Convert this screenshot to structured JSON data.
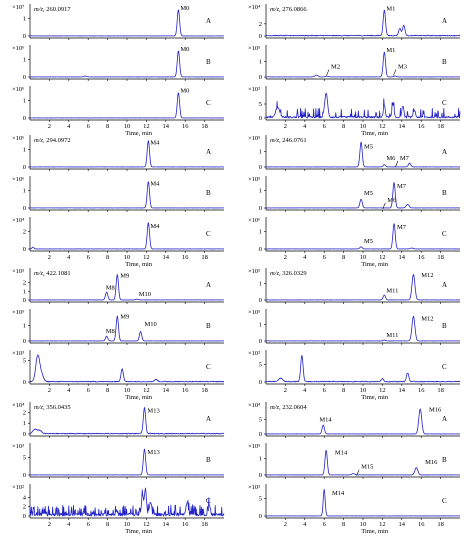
{
  "chart_data": {
    "type": "line",
    "x_axis": {
      "label": "Time, min",
      "range": [
        0,
        20
      ],
      "ticks": [
        "2",
        "4",
        "6",
        "8",
        "10",
        "12",
        "14",
        "16",
        "18"
      ]
    },
    "colors": {
      "trace": "#2323c8",
      "axis": "#000000"
    },
    "groups": [
      {
        "mz": "m/z, 260.0917",
        "panels": [
          {
            "row": "A",
            "scale": "×10⁷",
            "yticks": [
              "0",
              "1"
            ],
            "ymax": 1.6,
            "noise": "flat",
            "peaks": [
              {
                "t": 15.3,
                "h": 1.5,
                "w": 0.12
              }
            ],
            "labels": [
              {
                "text": "M0",
                "t": 15.3,
                "h": 1.5
              }
            ]
          },
          {
            "row": "B",
            "scale": "×10⁶",
            "yticks": [
              "0",
              "1"
            ],
            "ymax": 1.6,
            "noise": "flat",
            "peaks": [
              {
                "t": 15.3,
                "h": 1.5,
                "w": 0.12
              },
              {
                "t": 5.7,
                "h": 0.05,
                "w": 0.12
              }
            ],
            "labels": [
              {
                "text": "M0",
                "t": 15.3,
                "h": 1.5
              }
            ]
          },
          {
            "row": "C",
            "scale": "×10⁶",
            "yticks": [
              "0",
              "1"
            ],
            "ymax": 1.6,
            "noise": "flat",
            "peaks": [
              {
                "t": 15.3,
                "h": 1.45,
                "w": 0.12
              }
            ],
            "labels": [
              {
                "text": "M0",
                "t": 15.3,
                "h": 1.45
              }
            ]
          }
        ]
      },
      {
        "mz": "m/z, 276.0866",
        "panels": [
          {
            "row": "A",
            "scale": "×10⁴",
            "yticks": [
              "0",
              "2"
            ],
            "ymax": 4.6,
            "noise": "low",
            "peaks": [
              {
                "t": 12.2,
                "h": 4.2,
                "w": 0.12
              },
              {
                "t": 13.8,
                "h": 1.2,
                "w": 0.12
              },
              {
                "t": 14.2,
                "h": 1.7,
                "w": 0.12
              }
            ],
            "labels": [
              {
                "text": "M1",
                "t": 12.2,
                "h": 4.2
              }
            ]
          },
          {
            "row": "B",
            "scale": "×10⁵",
            "yticks": [
              "0",
              "1"
            ],
            "ymax": 1.8,
            "noise": "flat",
            "peaks": [
              {
                "t": 12.2,
                "h": 1.6,
                "w": 0.12
              },
              {
                "t": 5.2,
                "h": 0.12,
                "w": 0.15
              },
              {
                "t": 6.3,
                "h": 0.05,
                "w": 0.12
              },
              {
                "t": 13.3,
                "h": 0.06,
                "w": 0.12
              }
            ],
            "labels": [
              {
                "text": "M1",
                "t": 12.2,
                "h": 1.6
              },
              {
                "text": "M2",
                "t": 6.5,
                "h": 0.55,
                "arrow": true
              },
              {
                "text": "M3",
                "t": 13.4,
                "h": 0.55,
                "arrow": true
              }
            ]
          },
          {
            "row": "C",
            "scale": "×10³",
            "yticks": [
              "0",
              "5"
            ],
            "ymax": 10,
            "noise": "busy",
            "peaks": [
              {
                "t": 6.2,
                "h": 8.5,
                "w": 0.15
              },
              {
                "t": 12.2,
                "h": 4.2,
                "w": 0.1
              },
              {
                "t": 13.1,
                "h": 4.5,
                "w": 0.1
              },
              {
                "t": 14.1,
                "h": 4.0,
                "w": 0.1
              },
              {
                "t": 15.3,
                "h": 2.6,
                "w": 0.1
              },
              {
                "t": 1.2,
                "h": 3.5,
                "w": 0.2
              }
            ],
            "labels": [
              {
                "text": "C",
                "t": 19.5,
                "h": 6.3,
                "plain": true
              }
            ]
          }
        ]
      },
      {
        "mz": "m/z, 294.0972",
        "panels": [
          {
            "row": "A",
            "scale": "×10⁶",
            "yticks": [
              "0",
              "1"
            ],
            "ymax": 1.6,
            "noise": "flat",
            "peaks": [
              {
                "t": 12.2,
                "h": 1.5,
                "w": 0.12
              }
            ],
            "labels": [
              {
                "text": "M4",
                "t": 12.2,
                "h": 1.3
              }
            ]
          },
          {
            "row": "B",
            "scale": "×10⁶",
            "yticks": [
              "0",
              "1"
            ],
            "ymax": 1.6,
            "noise": "flat",
            "peaks": [
              {
                "t": 12.2,
                "h": 1.5,
                "w": 0.12
              }
            ],
            "labels": [
              {
                "text": "M4",
                "t": 12.2,
                "h": 1.3
              }
            ]
          },
          {
            "row": "C",
            "scale": "×10⁴",
            "yticks": [
              "0",
              "2"
            ],
            "ymax": 3.2,
            "noise": "flat",
            "peaks": [
              {
                "t": 12.2,
                "h": 3.0,
                "w": 0.12
              },
              {
                "t": 0.3,
                "h": 0.2,
                "w": 0.1
              }
            ],
            "labels": [
              {
                "text": "M4",
                "t": 12.2,
                "h": 2.4
              }
            ]
          }
        ]
      },
      {
        "mz": "m/z, 246.0761",
        "panels": [
          {
            "row": "A",
            "scale": "×10⁵",
            "yticks": [
              "0",
              "1"
            ],
            "ymax": 1.8,
            "noise": "flat",
            "peaks": [
              {
                "t": 9.8,
                "h": 1.6,
                "w": 0.12
              },
              {
                "t": 12.2,
                "h": 0.15,
                "w": 0.12
              },
              {
                "t": 14.8,
                "h": 0.25,
                "w": 0.12
              }
            ],
            "labels": [
              {
                "text": "M5",
                "t": 9.9,
                "h": 1.2
              },
              {
                "text": "M6",
                "t": 12.2,
                "h": 0.45
              },
              {
                "text": "M7",
                "t": 13.6,
                "h": 0.45,
                "arrow": true
              }
            ]
          },
          {
            "row": "B",
            "scale": "×10⁵",
            "yticks": [
              "0",
              "1"
            ],
            "ymax": 1.6,
            "noise": "flat",
            "peaks": [
              {
                "t": 9.8,
                "h": 0.5,
                "w": 0.12
              },
              {
                "t": 13.2,
                "h": 1.45,
                "w": 0.12
              },
              {
                "t": 14.6,
                "h": 0.2,
                "w": 0.15
              }
            ],
            "labels": [
              {
                "text": "M5",
                "t": 9.9,
                "h": 0.75
              },
              {
                "text": "M6",
                "t": 12.3,
                "h": 0.35,
                "arrow": true
              },
              {
                "text": "M7",
                "t": 13.3,
                "h": 1.15
              }
            ]
          },
          {
            "row": "C",
            "scale": "×10⁶",
            "yticks": [
              "0",
              "1"
            ],
            "ymax": 1.6,
            "noise": "flat",
            "peaks": [
              {
                "t": 9.8,
                "h": 0.12,
                "w": 0.12
              },
              {
                "t": 13.2,
                "h": 1.45,
                "w": 0.12
              },
              {
                "t": 15.0,
                "h": 0.05,
                "w": 0.15
              }
            ],
            "labels": [
              {
                "text": "M5",
                "t": 9.9,
                "h": 0.35
              },
              {
                "text": "M7",
                "t": 13.3,
                "h": 1.15
              }
            ]
          }
        ]
      },
      {
        "mz": "m/z, 422.1081",
        "panels": [
          {
            "row": "A",
            "scale": "×10⁵",
            "yticks": [
              "0",
              "1",
              "2"
            ],
            "ymax": 3.2,
            "noise": "flat",
            "peaks": [
              {
                "t": 7.9,
                "h": 0.9,
                "w": 0.12
              },
              {
                "t": 9.0,
                "h": 2.9,
                "w": 0.12
              },
              {
                "t": 11.0,
                "h": 0.08,
                "w": 0.12
              }
            ],
            "labels": [
              {
                "text": "M8",
                "t": 7.6,
                "h": 1.2
              },
              {
                "text": "M9",
                "t": 9.1,
                "h": 2.6
              },
              {
                "text": "M10",
                "t": 11.0,
                "h": 0.45
              }
            ]
          },
          {
            "row": "B",
            "scale": "×10⁵",
            "yticks": [
              "0",
              "1"
            ],
            "ymax": 1.8,
            "noise": "flat",
            "peaks": [
              {
                "t": 7.9,
                "h": 0.3,
                "w": 0.12
              },
              {
                "t": 9.0,
                "h": 1.6,
                "w": 0.12
              },
              {
                "t": 11.4,
                "h": 0.6,
                "w": 0.12
              }
            ],
            "labels": [
              {
                "text": "M8",
                "t": 7.6,
                "h": 0.5
              },
              {
                "text": "M9",
                "t": 9.1,
                "h": 1.45
              },
              {
                "text": "M10",
                "t": 11.6,
                "h": 0.95
              }
            ]
          },
          {
            "row": "C",
            "scale": "×10³",
            "yticks": [
              "0",
              "5"
            ],
            "ymax": 6.5,
            "noise": "low",
            "peaks": [
              {
                "t": 0.8,
                "h": 6.0,
                "w": 0.2
              },
              {
                "t": 1.2,
                "h": 1.5,
                "w": 0.2
              },
              {
                "t": 9.5,
                "h": 3.0,
                "w": 0.12
              },
              {
                "t": 13.0,
                "h": 0.5,
                "w": 0.15
              }
            ],
            "labels": []
          }
        ]
      },
      {
        "mz": "m/z, 326.0329",
        "panels": [
          {
            "row": "A",
            "scale": "×10⁵",
            "yticks": [
              "0",
              "1"
            ],
            "ymax": 1.7,
            "noise": "flat",
            "peaks": [
              {
                "t": 12.2,
                "h": 0.3,
                "w": 0.12
              },
              {
                "t": 15.2,
                "h": 1.55,
                "w": 0.15
              }
            ],
            "labels": [
              {
                "text": "M11",
                "t": 12.2,
                "h": 0.45
              },
              {
                "text": "M12",
                "t": 15.8,
                "h": 1.4
              }
            ]
          },
          {
            "row": "B",
            "scale": "×10⁵",
            "yticks": [
              "0",
              "1"
            ],
            "ymax": 1.7,
            "noise": "flat",
            "peaks": [
              {
                "t": 12.2,
                "h": 0.05,
                "w": 0.12
              },
              {
                "t": 15.2,
                "h": 1.5,
                "w": 0.15
              }
            ],
            "labels": [
              {
                "text": "M11",
                "t": 12.2,
                "h": 0.25
              },
              {
                "text": "M12",
                "t": 15.8,
                "h": 1.25
              }
            ]
          },
          {
            "row": "C",
            "scale": "×10³",
            "yticks": [
              "0",
              "5"
            ],
            "ymax": 8,
            "noise": "low",
            "peaks": [
              {
                "t": 3.7,
                "h": 7.5,
                "w": 0.12
              },
              {
                "t": 1.5,
                "h": 1.0,
                "w": 0.2
              },
              {
                "t": 14.6,
                "h": 2.5,
                "w": 0.12
              },
              {
                "t": 12.0,
                "h": 0.8,
                "w": 0.12
              }
            ],
            "labels": []
          }
        ]
      },
      {
        "mz": "m/z, 356.0435",
        "panels": [
          {
            "row": "A",
            "scale": "×10⁴",
            "yticks": [
              "0",
              "1",
              "2"
            ],
            "ymax": 2.6,
            "noise": "low",
            "peaks": [
              {
                "t": 11.8,
                "h": 2.4,
                "w": 0.12
              },
              {
                "t": 0.5,
                "h": 0.4,
                "w": 0.2
              },
              {
                "t": 1.0,
                "h": 0.3,
                "w": 0.2
              }
            ],
            "labels": [
              {
                "text": "M13",
                "t": 11.9,
                "h": 2.0
              }
            ]
          },
          {
            "row": "B",
            "scale": "×10³",
            "yticks": [
              "0",
              "5"
            ],
            "ymax": 8,
            "noise": "flat",
            "peaks": [
              {
                "t": 11.8,
                "h": 7.4,
                "w": 0.12
              }
            ],
            "labels": [
              {
                "text": "M13",
                "t": 11.9,
                "h": 6.0
              }
            ]
          },
          {
            "row": "C",
            "scale": "×10²",
            "yticks": [
              "0",
              "2",
              "4"
            ],
            "ymax": 6,
            "noise": "grass",
            "peaks": [
              {
                "t": 11.6,
                "h": 4.5,
                "w": 0.1
              },
              {
                "t": 11.9,
                "h": 5.5,
                "w": 0.1
              },
              {
                "t": 12.4,
                "h": 2.5,
                "w": 0.1
              },
              {
                "t": 16.2,
                "h": 2.5,
                "w": 0.1
              },
              {
                "t": 18.5,
                "h": 2.2,
                "w": 0.1
              }
            ],
            "labels": []
          }
        ]
      },
      {
        "mz": "m/z, 232.0604",
        "panels": [
          {
            "row": "A",
            "scale": "×10⁴",
            "yticks": [
              "0",
              "5"
            ],
            "ymax": 9.5,
            "noise": "flat",
            "peaks": [
              {
                "t": 5.9,
                "h": 3.0,
                "w": 0.12
              },
              {
                "t": 15.9,
                "h": 8.5,
                "w": 0.15
              }
            ],
            "labels": [
              {
                "text": "M14",
                "t": 5.3,
                "h": 4.2
              },
              {
                "text": "M16",
                "t": 16.6,
                "h": 7.6
              }
            ]
          },
          {
            "row": "B",
            "scale": "×10⁵",
            "yticks": [
              "0",
              "1"
            ],
            "ymax": 1.7,
            "noise": "flat",
            "peaks": [
              {
                "t": 6.2,
                "h": 1.5,
                "w": 0.12
              },
              {
                "t": 9.0,
                "h": 0.08,
                "w": 0.15
              },
              {
                "t": 15.5,
                "h": 0.45,
                "w": 0.15
              }
            ],
            "labels": [
              {
                "text": "M14",
                "t": 6.9,
                "h": 1.25
              },
              {
                "text": "M15",
                "t": 9.6,
                "h": 0.38,
                "arrow": true
              },
              {
                "text": "M16",
                "t": 16.2,
                "h": 0.68
              }
            ]
          },
          {
            "row": "C",
            "scale": "×10³",
            "yticks": [
              "0",
              "5"
            ],
            "ymax": 8,
            "noise": "flat",
            "peaks": [
              {
                "t": 6.0,
                "h": 7.6,
                "w": 0.1
              }
            ],
            "labels": [
              {
                "text": "M14",
                "t": 6.6,
                "h": 6.0
              }
            ]
          }
        ]
      }
    ]
  }
}
